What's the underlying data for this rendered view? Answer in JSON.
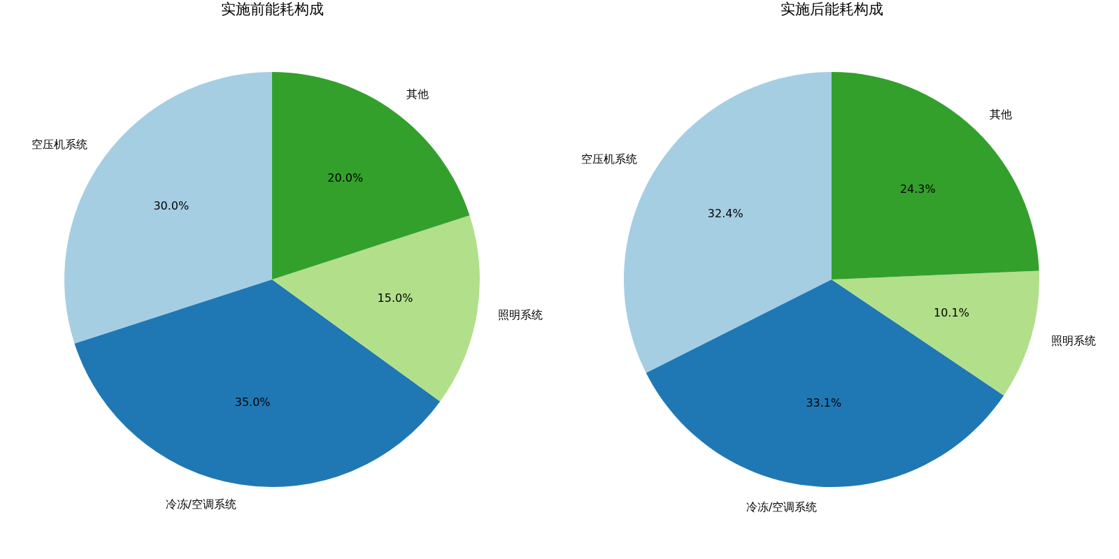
{
  "chart_data": [
    {
      "type": "pie",
      "title": "实施前能耗构成",
      "categories": [
        "空压机系统",
        "冷冻/空调系统",
        "照明系统",
        "其他"
      ],
      "values": [
        30,
        35,
        15,
        20
      ],
      "colors": [
        "#a6cee3",
        "#1f78b4",
        "#b2df8a",
        "#33a02c"
      ],
      "value_labels": [
        "30.0%",
        "35.0%",
        "15.0%",
        "20.0%"
      ]
    },
    {
      "type": "pie",
      "title": "实施后能耗构成",
      "categories": [
        "空压机系统",
        "冷冻/空调系统",
        "照明系统",
        "其他"
      ],
      "values": [
        32.4,
        33.1,
        10.1,
        24.3
      ],
      "colors": [
        "#a6cee3",
        "#1f78b4",
        "#b2df8a",
        "#33a02c"
      ],
      "value_labels": [
        "32.4%",
        "33.1%",
        "10.1%",
        "24.3%"
      ]
    }
  ]
}
